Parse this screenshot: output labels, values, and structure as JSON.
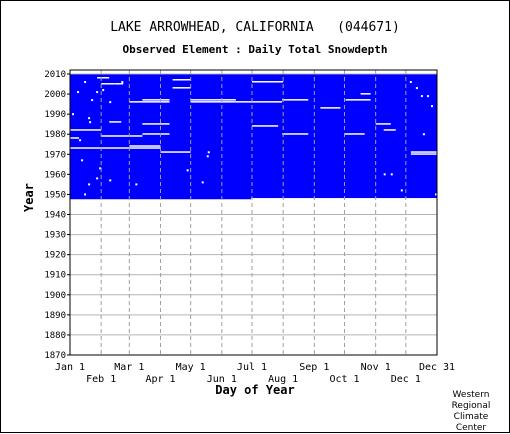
{
  "chart_data": {
    "type": "heatmap",
    "title": "LAKE ARROWHEAD, CALIFORNIA   (044671)",
    "subtitle": "Observed Element : Daily Total Snowdepth",
    "xlabel": "Day of Year",
    "ylabel": "Year",
    "credit": [
      "Western",
      "Regional",
      "Climate",
      "Center"
    ],
    "ylim": [
      1870,
      2012
    ],
    "yticks": [
      1870,
      1880,
      1890,
      1900,
      1910,
      1920,
      1930,
      1940,
      1950,
      1960,
      1970,
      1980,
      1990,
      2000,
      2010
    ],
    "x_range_days": [
      1,
      366
    ],
    "month_labels_top": [
      {
        "label": "Jan 1",
        "day": 1
      },
      {
        "label": "Mar 1",
        "day": 60
      },
      {
        "label": "May 1",
        "day": 121
      },
      {
        "label": "Jul 1",
        "day": 182
      },
      {
        "label": "Sep 1",
        "day": 244
      },
      {
        "label": "Nov 1",
        "day": 305
      },
      {
        "label": "Dec 31",
        "day": 366
      }
    ],
    "month_labels_bottom": [
      {
        "label": "Feb 1",
        "day": 32
      },
      {
        "label": "Apr 1",
        "day": 91
      },
      {
        "label": "Jun 1",
        "day": 152
      },
      {
        "label": "Aug 1",
        "day": 213
      },
      {
        "label": "Oct 1",
        "day": 274
      },
      {
        "label": "Dec 1",
        "day": 335
      }
    ],
    "gridline_days": [
      32,
      60,
      91,
      121,
      152,
      182,
      213,
      244,
      274,
      305,
      335
    ],
    "data_color": "#0000ff",
    "observed_periods": [
      {
        "start_year": 1947.6,
        "end_year": 2009.8,
        "start_day": 1,
        "end_day": 181
      },
      {
        "start_year": 1948.2,
        "end_year": 2009.8,
        "start_day": 181,
        "end_day": 366
      }
    ],
    "missing_segments": [
      {
        "year": 2008,
        "start_day": 28,
        "end_day": 40
      },
      {
        "year": 2007,
        "start_day": 103,
        "end_day": 121
      },
      {
        "year": 2006,
        "start_day": 182,
        "end_day": 213
      },
      {
        "year": 2005,
        "start_day": 32,
        "end_day": 45
      },
      {
        "year": 2005,
        "start_day": 45,
        "end_day": 54
      },
      {
        "year": 2003,
        "start_day": 103,
        "end_day": 121
      },
      {
        "year": 2000,
        "start_day": 290,
        "end_day": 300
      },
      {
        "year": 1997,
        "start_day": 73,
        "end_day": 100
      },
      {
        "year": 1997,
        "start_day": 121,
        "end_day": 166
      },
      {
        "year": 1997,
        "start_day": 212,
        "end_day": 238
      },
      {
        "year": 1997,
        "start_day": 275,
        "end_day": 300
      },
      {
        "year": 1996,
        "start_day": 60,
        "end_day": 100
      },
      {
        "year": 1996,
        "start_day": 121,
        "end_day": 166
      },
      {
        "year": 1996,
        "start_day": 166,
        "end_day": 212
      },
      {
        "year": 1993,
        "start_day": 250,
        "end_day": 270
      },
      {
        "year": 1986,
        "start_day": 40,
        "end_day": 52
      },
      {
        "year": 1985,
        "start_day": 73,
        "end_day": 100
      },
      {
        "year": 1985,
        "start_day": 305,
        "end_day": 320
      },
      {
        "year": 1984,
        "start_day": 182,
        "end_day": 208
      },
      {
        "year": 1982,
        "start_day": 1,
        "end_day": 32
      },
      {
        "year": 1982,
        "start_day": 313,
        "end_day": 325
      },
      {
        "year": 1980,
        "start_day": 73,
        "end_day": 100
      },
      {
        "year": 1980,
        "start_day": 212,
        "end_day": 238
      },
      {
        "year": 1980,
        "start_day": 274,
        "end_day": 294
      },
      {
        "year": 1979,
        "start_day": 32,
        "end_day": 73
      },
      {
        "year": 1978,
        "start_day": 1,
        "end_day": 10
      },
      {
        "year": 1974,
        "start_day": 60,
        "end_day": 91
      },
      {
        "year": 1973,
        "start_day": 60,
        "end_day": 91
      },
      {
        "year": 1973,
        "start_day": 1,
        "end_day": 60
      },
      {
        "year": 1971,
        "start_day": 91,
        "end_day": 121
      },
      {
        "year": 1971,
        "start_day": 340,
        "end_day": 366
      },
      {
        "year": 1970,
        "start_day": 340,
        "end_day": 366
      }
    ],
    "missing_points": [
      {
        "year": 2006,
        "day": 15
      },
      {
        "year": 2006,
        "day": 52
      },
      {
        "year": 2006,
        "day": 339
      },
      {
        "year": 2003,
        "day": 345
      },
      {
        "year": 2002,
        "day": 33
      },
      {
        "year": 2001,
        "day": 8
      },
      {
        "year": 2001,
        "day": 27
      },
      {
        "year": 1999,
        "day": 350
      },
      {
        "year": 1999,
        "day": 356
      },
      {
        "year": 1997,
        "day": 22
      },
      {
        "year": 1996,
        "day": 40
      },
      {
        "year": 1994,
        "day": 360
      },
      {
        "year": 1990,
        "day": 3
      },
      {
        "year": 1988,
        "day": 19
      },
      {
        "year": 1986,
        "day": 20
      },
      {
        "year": 1980,
        "day": 352
      },
      {
        "year": 1977,
        "day": 10
      },
      {
        "year": 1971,
        "day": 138
      },
      {
        "year": 1969,
        "day": 137
      },
      {
        "year": 1967,
        "day": 12
      },
      {
        "year": 1963,
        "day": 30
      },
      {
        "year": 1962,
        "day": 117
      },
      {
        "year": 1960,
        "day": 313
      },
      {
        "year": 1960,
        "day": 320
      },
      {
        "year": 1958,
        "day": 27
      },
      {
        "year": 1957,
        "day": 40
      },
      {
        "year": 1956,
        "day": 132
      },
      {
        "year": 1955,
        "day": 19
      },
      {
        "year": 1955,
        "day": 66
      },
      {
        "year": 1952,
        "day": 330
      },
      {
        "year": 1950,
        "day": 15
      },
      {
        "year": 1950,
        "day": 364
      }
    ]
  }
}
